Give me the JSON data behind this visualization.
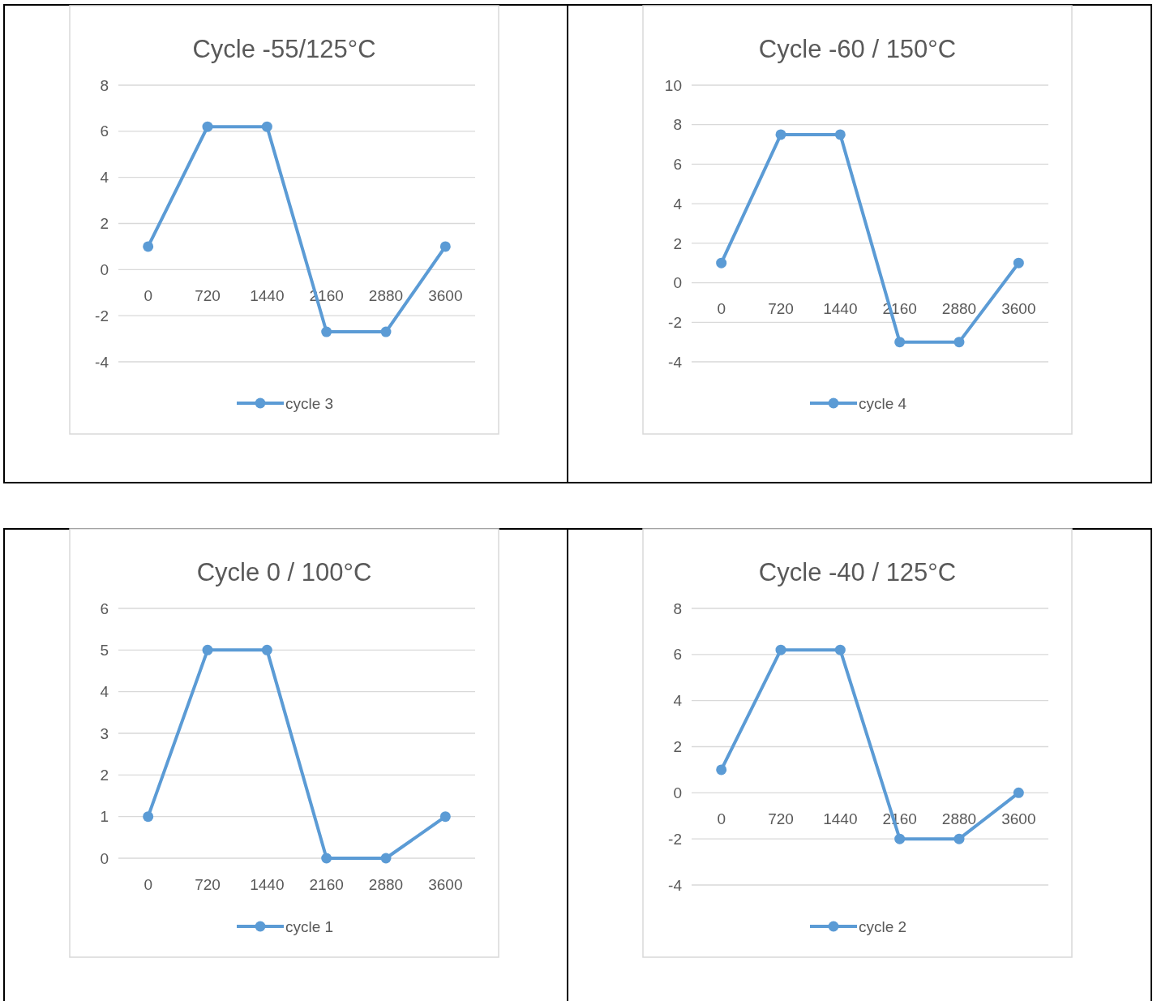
{
  "chart_data": [
    {
      "type": "line",
      "title": "Cycle  -55/125°C",
      "categories": [
        "0",
        "720",
        "1440",
        "2160",
        "2880",
        "3600"
      ],
      "series": [
        {
          "name": "cycle 3",
          "color": "#5b9bd5",
          "values": [
            1,
            6.2,
            6.2,
            -2.7,
            -2.7,
            1
          ]
        }
      ],
      "ylim": [
        -4,
        8
      ],
      "yticks": [
        -4,
        -2,
        0,
        2,
        4,
        6,
        8
      ],
      "grid": "y",
      "legend": "bottom",
      "marker": "circle"
    },
    {
      "type": "line",
      "title": "Cycle -60 / 150°C",
      "categories": [
        "0",
        "720",
        "1440",
        "2160",
        "2880",
        "3600"
      ],
      "series": [
        {
          "name": "cycle 4",
          "color": "#5b9bd5",
          "values": [
            1,
            7.5,
            7.5,
            -3,
            -3,
            1
          ]
        }
      ],
      "ylim": [
        -4,
        10
      ],
      "yticks": [
        -4,
        -2,
        0,
        2,
        4,
        6,
        8,
        10
      ],
      "grid": "y",
      "legend": "bottom",
      "marker": "circle"
    },
    {
      "type": "line",
      "title": "Cycle 0 / 100°C",
      "categories": [
        "0",
        "720",
        "1440",
        "2160",
        "2880",
        "3600"
      ],
      "series": [
        {
          "name": "cycle 1",
          "color": "#5b9bd5",
          "values": [
            1,
            5,
            5,
            0,
            0,
            1
          ]
        }
      ],
      "ylim": [
        0,
        6
      ],
      "yticks": [
        0,
        1,
        2,
        3,
        4,
        5,
        6
      ],
      "grid": "y",
      "legend": "bottom",
      "marker": "circle"
    },
    {
      "type": "line",
      "title": "Cycle -40 / 125°C",
      "categories": [
        "0",
        "720",
        "1440",
        "2160",
        "2880",
        "3600"
      ],
      "series": [
        {
          "name": "cycle 2",
          "color": "#5b9bd5",
          "values": [
            1,
            6.2,
            6.2,
            -2,
            -2,
            0
          ]
        }
      ],
      "ylim": [
        -4,
        8
      ],
      "yticks": [
        -4,
        -2,
        0,
        2,
        4,
        6,
        8
      ],
      "grid": "y",
      "legend": "bottom",
      "marker": "circle"
    }
  ]
}
